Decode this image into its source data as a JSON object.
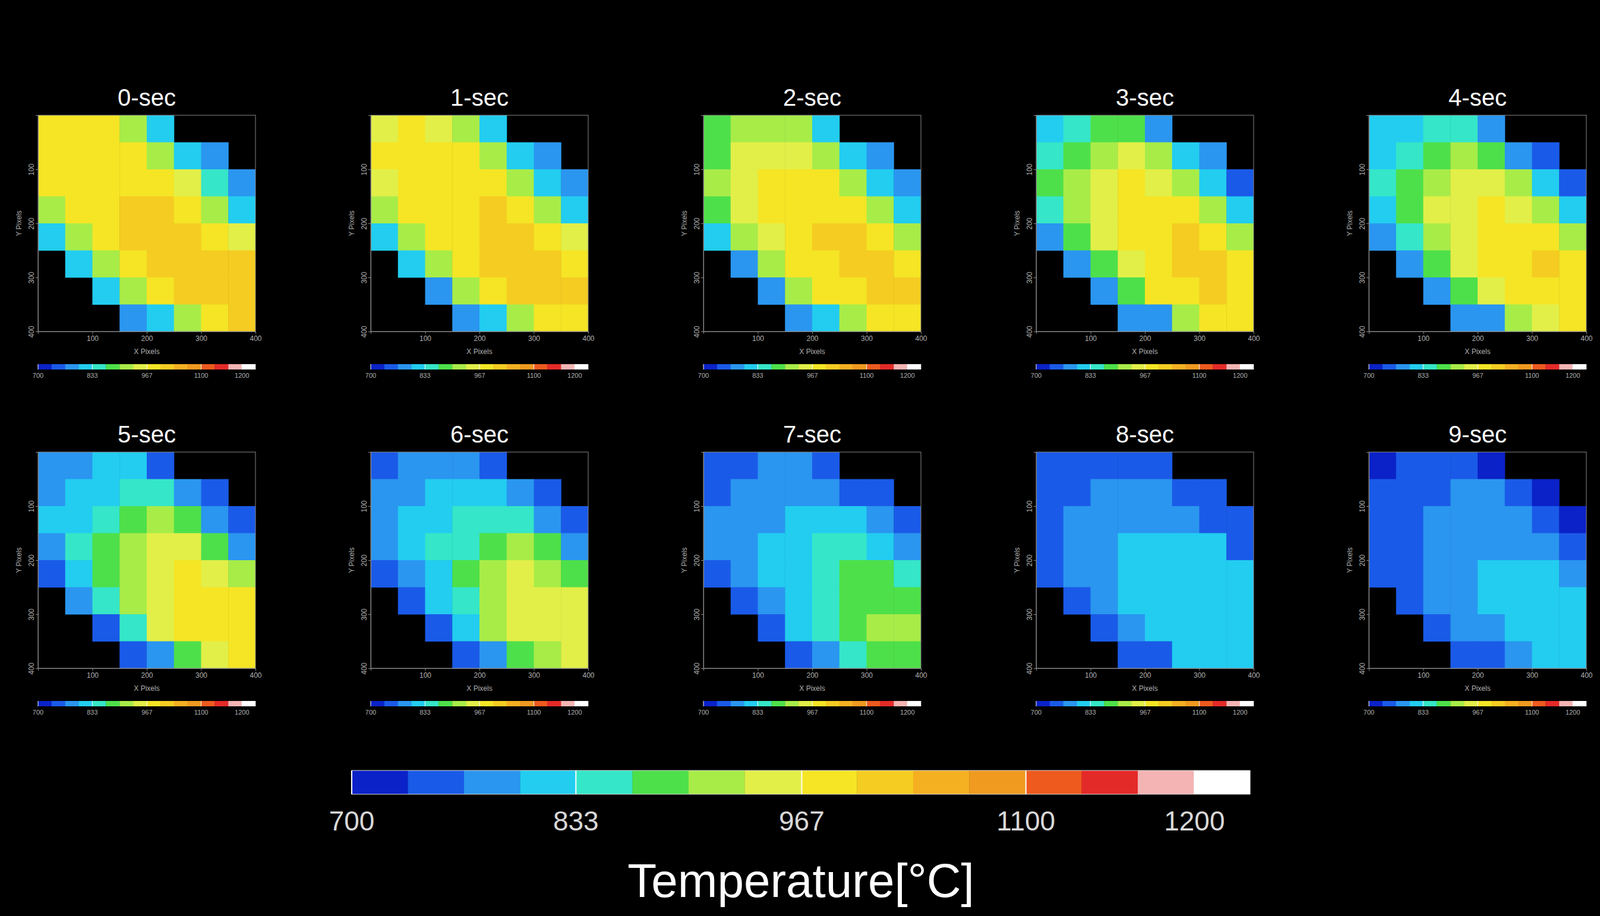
{
  "chart_data": {
    "type": "heatmap",
    "x_label": "X Pixels",
    "y_label": "Y Pixels",
    "xlim": [
      0,
      400
    ],
    "ylim": [
      400,
      0
    ],
    "xticks": [
      100,
      200,
      300,
      400
    ],
    "yticks": [
      100,
      200,
      300,
      400
    ],
    "colorbar": {
      "title": "Temperature[°C]",
      "range": [
        700,
        1233
      ],
      "ticks": [
        700,
        833,
        967,
        1100,
        1200
      ],
      "colors": [
        "#0a22c8",
        "#1a5ae8",
        "#2a96f0",
        "#22cdf0",
        "#35e6c8",
        "#4ee04a",
        "#a8ec48",
        "#e2ef48",
        "#f5e525",
        "#f5cc22",
        "#f5b022",
        "#f09a20",
        "#ee5a1e",
        "#e42a28",
        "#f4b4b4",
        "#ffffff"
      ]
    },
    "panels": [
      {
        "title": "0-sec",
        "cells": [
          [
            975,
            980,
            970,
            930,
            820,
            null,
            null,
            null
          ],
          [
            980,
            985,
            990,
            975,
            925,
            830,
            790,
            null
          ],
          [
            970,
            985,
            995,
            990,
            980,
            935,
            840,
            780
          ],
          [
            925,
            980,
            990,
            1000,
            1005,
            985,
            930,
            830
          ],
          [
            820,
            930,
            985,
            1000,
            1010,
            1020,
            990,
            940
          ],
          [
            null,
            810,
            920,
            990,
            1005,
            1015,
            1020,
            1000
          ],
          [
            null,
            null,
            800,
            915,
            985,
            1005,
            1015,
            1010
          ],
          [
            null,
            null,
            null,
            790,
            810,
            920,
            985,
            1000
          ]
        ]
      },
      {
        "title": "1-sec",
        "cells": [
          [
            965,
            970,
            965,
            925,
            810,
            null,
            null,
            null
          ],
          [
            970,
            980,
            985,
            970,
            920,
            820,
            780,
            null
          ],
          [
            960,
            980,
            990,
            990,
            975,
            930,
            830,
            775
          ],
          [
            915,
            975,
            985,
            995,
            1000,
            980,
            925,
            820
          ],
          [
            810,
            920,
            980,
            995,
            1005,
            1015,
            985,
            935
          ],
          [
            null,
            800,
            915,
            985,
            1000,
            1010,
            1015,
            995
          ],
          [
            null,
            null,
            790,
            910,
            980,
            1000,
            1010,
            1005
          ],
          [
            null,
            null,
            null,
            785,
            805,
            915,
            980,
            995
          ]
        ]
      },
      {
        "title": "2-sec",
        "cells": [
          [
            870,
            900,
            930,
            900,
            800,
            null,
            null,
            null
          ],
          [
            890,
            935,
            960,
            960,
            910,
            810,
            775,
            null
          ],
          [
            905,
            950,
            975,
            985,
            970,
            925,
            825,
            770
          ],
          [
            880,
            950,
            975,
            990,
            995,
            975,
            920,
            815
          ],
          [
            800,
            900,
            965,
            985,
            1000,
            1010,
            980,
            930
          ],
          [
            null,
            795,
            905,
            975,
            995,
            1005,
            1010,
            990
          ],
          [
            null,
            null,
            785,
            900,
            975,
            995,
            1005,
            1000
          ],
          [
            null,
            null,
            null,
            780,
            800,
            910,
            975,
            990
          ]
        ]
      },
      {
        "title": "3-sec",
        "cells": [
          [
            830,
            850,
            880,
            880,
            790,
            null,
            null,
            null
          ],
          [
            850,
            890,
            930,
            945,
            900,
            800,
            770,
            null
          ],
          [
            870,
            920,
            955,
            975,
            965,
            920,
            815,
            765
          ],
          [
            850,
            925,
            960,
            980,
            990,
            970,
            915,
            810
          ],
          [
            790,
            880,
            950,
            975,
            995,
            1005,
            975,
            925
          ],
          [
            null,
            790,
            895,
            965,
            990,
            1000,
            1005,
            985
          ],
          [
            null,
            null,
            780,
            890,
            970,
            990,
            1000,
            995
          ],
          [
            null,
            null,
            null,
            775,
            795,
            905,
            970,
            985
          ]
        ]
      },
      {
        "title": "4-sec",
        "cells": [
          [
            800,
            815,
            835,
            845,
            775,
            null,
            null,
            null
          ],
          [
            815,
            845,
            880,
            910,
            880,
            790,
            760,
            null
          ],
          [
            835,
            880,
            920,
            950,
            955,
            910,
            805,
            760
          ],
          [
            820,
            890,
            935,
            965,
            980,
            965,
            905,
            800
          ],
          [
            775,
            850,
            920,
            960,
            985,
            995,
            970,
            915
          ],
          [
            null,
            780,
            875,
            950,
            980,
            995,
            1000,
            980
          ],
          [
            null,
            null,
            770,
            880,
            960,
            985,
            995,
            990
          ],
          [
            null,
            null,
            null,
            770,
            790,
            900,
            965,
            980
          ]
        ]
      },
      {
        "title": "5-sec",
        "cells": [
          [
            780,
            790,
            800,
            810,
            760,
            null,
            null,
            null
          ],
          [
            790,
            805,
            830,
            850,
            840,
            780,
            750,
            null
          ],
          [
            800,
            830,
            860,
            890,
            910,
            890,
            795,
            750
          ],
          [
            795,
            840,
            880,
            920,
            950,
            950,
            895,
            790
          ],
          [
            760,
            815,
            870,
            920,
            960,
            980,
            960,
            905
          ],
          [
            null,
            770,
            845,
            910,
            960,
            985,
            990,
            970
          ],
          [
            null,
            null,
            765,
            860,
            945,
            975,
            985,
            980
          ],
          [
            null,
            null,
            null,
            760,
            785,
            890,
            955,
            970
          ]
        ]
      },
      {
        "title": "6-sec",
        "cells": [
          [
            765,
            775,
            785,
            790,
            750,
            null,
            null,
            null
          ],
          [
            775,
            785,
            800,
            815,
            810,
            770,
            745,
            null
          ],
          [
            785,
            800,
            820,
            840,
            855,
            850,
            785,
            745
          ],
          [
            780,
            810,
            835,
            860,
            890,
            905,
            870,
            785
          ],
          [
            750,
            795,
            830,
            870,
            905,
            935,
            930,
            890
          ],
          [
            null,
            760,
            815,
            865,
            910,
            945,
            960,
            945
          ],
          [
            null,
            null,
            755,
            830,
            900,
            940,
            960,
            955
          ],
          [
            null,
            null,
            null,
            750,
            780,
            870,
            930,
            945
          ]
        ]
      },
      {
        "title": "7-sec",
        "cells": [
          [
            755,
            765,
            770,
            775,
            740,
            null,
            null,
            null
          ],
          [
            765,
            775,
            785,
            790,
            790,
            760,
            740,
            null
          ],
          [
            770,
            785,
            795,
            805,
            815,
            815,
            775,
            740
          ],
          [
            770,
            790,
            805,
            820,
            835,
            845,
            830,
            775
          ],
          [
            745,
            780,
            805,
            830,
            855,
            870,
            875,
            860
          ],
          [
            null,
            755,
            795,
            830,
            860,
            880,
            895,
            895
          ],
          [
            null,
            null,
            750,
            805,
            850,
            880,
            900,
            905
          ],
          [
            null,
            null,
            null,
            745,
            775,
            845,
            885,
            895
          ]
        ]
      },
      {
        "title": "8-sec",
        "cells": [
          [
            745,
            755,
            760,
            765,
            735,
            null,
            null,
            null
          ],
          [
            750,
            765,
            775,
            780,
            780,
            755,
            735,
            null
          ],
          [
            760,
            775,
            785,
            790,
            795,
            795,
            765,
            735
          ],
          [
            760,
            780,
            790,
            800,
            805,
            810,
            800,
            765
          ],
          [
            740,
            770,
            790,
            800,
            810,
            815,
            815,
            805
          ],
          [
            null,
            750,
            785,
            800,
            810,
            820,
            825,
            820
          ],
          [
            null,
            null,
            745,
            790,
            805,
            815,
            825,
            825
          ],
          [
            null,
            null,
            null,
            740,
            765,
            800,
            815,
            820
          ]
        ]
      },
      {
        "title": "9-sec",
        "cells": [
          [
            730,
            735,
            745,
            755,
            730,
            null,
            null,
            null
          ],
          [
            735,
            745,
            760,
            770,
            770,
            745,
            730,
            null
          ],
          [
            745,
            760,
            770,
            780,
            785,
            785,
            755,
            730
          ],
          [
            750,
            765,
            780,
            790,
            795,
            795,
            790,
            760
          ],
          [
            735,
            760,
            780,
            790,
            800,
            800,
            800,
            795
          ],
          [
            null,
            745,
            775,
            790,
            800,
            805,
            810,
            805
          ],
          [
            null,
            null,
            740,
            780,
            795,
            805,
            810,
            810
          ],
          [
            null,
            null,
            null,
            735,
            760,
            790,
            800,
            805
          ]
        ]
      }
    ]
  }
}
